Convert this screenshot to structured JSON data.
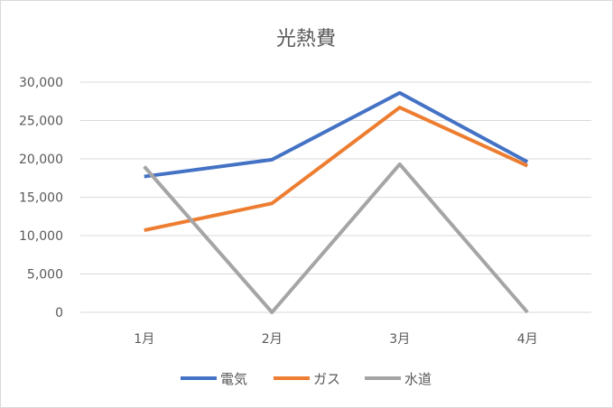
{
  "chart_data": {
    "type": "line",
    "title": "光熱費",
    "categories": [
      "1月",
      "2月",
      "3月",
      "4月"
    ],
    "ylim": [
      0,
      30000
    ],
    "yticks": [
      0,
      5000,
      10000,
      15000,
      20000,
      25000,
      30000
    ],
    "ytick_labels": [
      "0",
      "5,000",
      "10,000",
      "15,000",
      "20,000",
      "25,000",
      "30,000"
    ],
    "grid": true,
    "legend_position": "bottom",
    "series": [
      {
        "name": "電気",
        "color": "#4472c4",
        "values": [
          17700,
          19900,
          28600,
          19600
        ]
      },
      {
        "name": "ガス",
        "color": "#ed7d31",
        "values": [
          10700,
          14200,
          26700,
          19100
        ]
      },
      {
        "name": "水道",
        "color": "#a5a5a5",
        "values": [
          19000,
          0,
          19300,
          0
        ]
      }
    ]
  }
}
